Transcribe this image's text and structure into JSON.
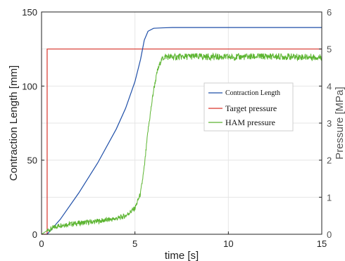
{
  "chart_data": {
    "type": "line",
    "xlabel": "time [s]",
    "ylabel_left": "Contraction Length [mm]",
    "ylabel_right": "Pressure [MPa]",
    "xlim": [
      0,
      15
    ],
    "ylim_left": [
      0,
      150
    ],
    "ylim_right": [
      0,
      6
    ],
    "x_ticks": [
      "0",
      "5",
      "10",
      "15"
    ],
    "y_left_ticks": [
      "0",
      "50",
      "100",
      "150"
    ],
    "y_right_ticks": [
      "0",
      "1",
      "2",
      "3",
      "4",
      "5",
      "6"
    ],
    "grid": true,
    "legend_position": "right",
    "series": [
      {
        "name": "Contraction Length",
        "axis": "left",
        "color": "#1f4fa8",
        "x": [
          0.3,
          1,
          2,
          3,
          4,
          4.5,
          5,
          5.3,
          5.5,
          5.7,
          6,
          6.5,
          7,
          10,
          15
        ],
        "y": [
          0,
          10,
          28,
          48,
          71,
          85,
          103,
          118,
          131,
          137,
          139,
          139.3,
          139.5,
          139.5,
          139.5
        ]
      },
      {
        "name": "Target pressure",
        "axis": "right",
        "color": "#d9342b",
        "x": [
          0,
          0.3,
          0.3,
          15
        ],
        "y": [
          0,
          0,
          5,
          5
        ]
      },
      {
        "name": "HAM pressure",
        "axis": "right",
        "color": "#5cb531",
        "x": [
          0,
          0.3,
          1,
          2,
          3,
          4,
          4.5,
          5,
          5.3,
          5.5,
          5.7,
          6,
          6.2,
          6.4,
          6.6,
          7,
          8,
          10,
          12,
          15
        ],
        "y": [
          0,
          0.1,
          0.25,
          0.3,
          0.35,
          0.42,
          0.5,
          0.7,
          1.1,
          1.8,
          2.8,
          3.9,
          4.4,
          4.7,
          4.8,
          4.78,
          4.8,
          4.78,
          4.8,
          4.78
        ]
      }
    ]
  },
  "colors": {
    "axis": "#222222",
    "grid": "#e6e6e6",
    "background": "#ffffff"
  }
}
